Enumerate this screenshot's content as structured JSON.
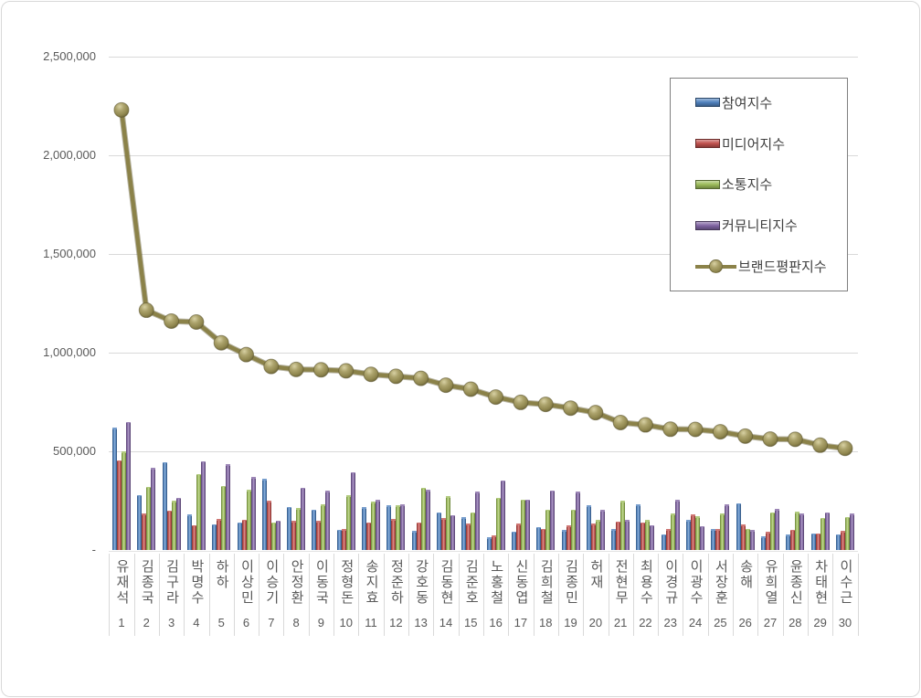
{
  "page": {
    "background": "#FFFFFF",
    "border_color": "#D8D8D8"
  },
  "chart_data": {
    "type": "combo-bar-line",
    "categories": [
      "유재석",
      "김종국",
      "김구라",
      "박명수",
      "하하",
      "이상민",
      "이승기",
      "안정환",
      "이동국",
      "정형돈",
      "송지효",
      "정준하",
      "강호동",
      "김동현",
      "김준호",
      "노홍철",
      "신동엽",
      "김희철",
      "김종민",
      "허재",
      "전현무",
      "최용수",
      "이경규",
      "이광수",
      "서장훈",
      "송해",
      "유희열",
      "윤종신",
      "차태현",
      "이수근"
    ],
    "ranks": [
      "1",
      "2",
      "3",
      "4",
      "5",
      "6",
      "7",
      "8",
      "9",
      "10",
      "11",
      "12",
      "13",
      "14",
      "15",
      "16",
      "17",
      "18",
      "19",
      "20",
      "21",
      "22",
      "23",
      "24",
      "25",
      "26",
      "27",
      "28",
      "29",
      "30"
    ],
    "series": [
      {
        "name": "참여지수",
        "type": "bar",
        "color": "#4F81BD",
        "values": [
          620000,
          280000,
          445000,
          180000,
          130000,
          140000,
          360000,
          218000,
          204000,
          103000,
          216000,
          226000,
          95000,
          192000,
          166000,
          63000,
          94000,
          118000,
          100000,
          226000,
          105000,
          230000,
          81000,
          152000,
          105000,
          238000,
          69000,
          77000,
          85000,
          81000
        ]
      },
      {
        "name": "미디어지수",
        "type": "bar",
        "color": "#C0504D",
        "values": [
          455000,
          185000,
          200000,
          127000,
          157000,
          155000,
          250000,
          147000,
          147000,
          105000,
          139000,
          157000,
          140000,
          160000,
          132000,
          74000,
          132000,
          108000,
          125000,
          132000,
          144000,
          139000,
          105000,
          179000,
          105000,
          128000,
          92000,
          102000,
          85000,
          97000
        ]
      },
      {
        "name": "소통지수",
        "type": "bar",
        "color": "#9BBB59",
        "values": [
          500000,
          320000,
          250000,
          385000,
          325000,
          305000,
          140000,
          212000,
          230000,
          277000,
          244000,
          226000,
          315000,
          272000,
          192000,
          266000,
          255000,
          206000,
          205000,
          152000,
          249000,
          152000,
          183000,
          171000,
          185000,
          108000,
          191000,
          194000,
          163000,
          168000
        ]
      },
      {
        "name": "커뮤니티지수",
        "type": "bar",
        "color": "#8064A2",
        "values": [
          650000,
          415000,
          265000,
          450000,
          435000,
          370000,
          150000,
          315000,
          300000,
          395000,
          254000,
          230000,
          305000,
          177000,
          294000,
          354000,
          255000,
          303000,
          295000,
          202000,
          152000,
          127000,
          254000,
          121000,
          230000,
          100000,
          207000,
          183000,
          191000,
          183000
        ]
      },
      {
        "name": "브랜드평판지수",
        "type": "line",
        "color": "#948A54",
        "values": [
          2230000,
          1215000,
          1160000,
          1155000,
          1050000,
          990000,
          930000,
          915000,
          913000,
          908000,
          890000,
          880000,
          870000,
          835000,
          815000,
          775000,
          748000,
          738000,
          719000,
          696000,
          646000,
          634000,
          612000,
          611000,
          599000,
          577000,
          562000,
          561000,
          531000,
          515000
        ]
      }
    ],
    "y_axis": {
      "tick_labels": [
        "2,500,000",
        "2,000,000",
        "1,500,000",
        "1,000,000",
        "500,000",
        "-"
      ],
      "tick_values": [
        2500000,
        2000000,
        1500000,
        1000000,
        500000,
        0
      ],
      "min": 0,
      "max": 2500000,
      "grid": true
    },
    "legend": {
      "position": "top-right",
      "entries": [
        "참여지수",
        "미디어지수",
        "소통지수",
        "커뮤니티지수",
        "브랜드평판지수"
      ]
    }
  }
}
